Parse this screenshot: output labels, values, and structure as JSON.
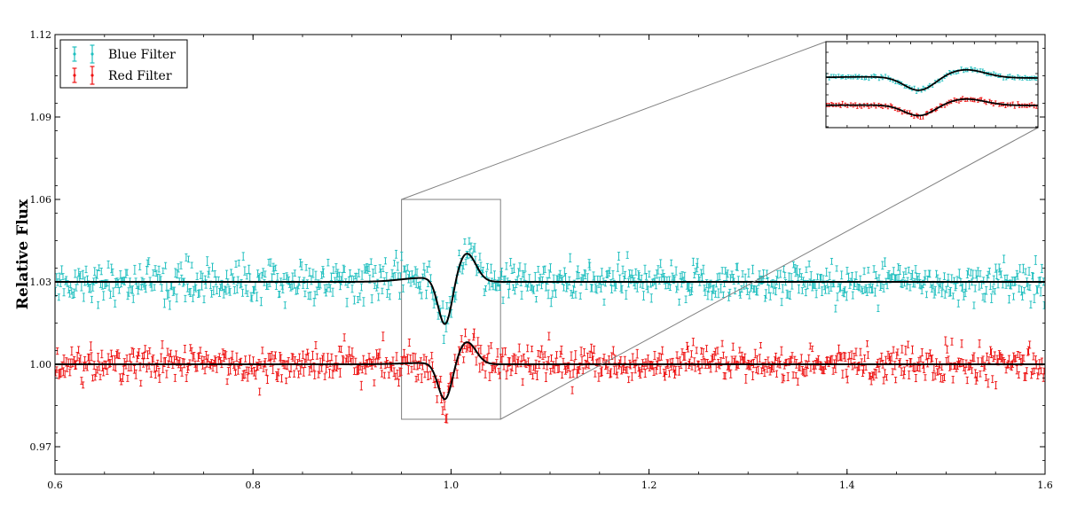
{
  "chart_data": {
    "type": "scatter",
    "title": "",
    "xlabel": "",
    "ylabel": "Relative Flux",
    "xlim": [
      0.6,
      1.6
    ],
    "ylim": [
      0.96,
      1.12
    ],
    "x_ticks": [
      0.6,
      0.8,
      1.0,
      1.2,
      1.4,
      1.6
    ],
    "x_tick_labels": [
      "0.6",
      "0.8",
      "1.0",
      "1.2",
      "1.4",
      "1.6"
    ],
    "y_ticks": [
      0.97,
      1.0,
      1.03,
      1.06,
      1.09,
      1.12
    ],
    "y_tick_labels": [
      "0.97",
      "1.00",
      "1.03",
      "1.06",
      "1.09",
      "1.12"
    ],
    "grid": false,
    "legend_position": "top-left",
    "series": [
      {
        "name": "Blue Filter",
        "color": "#1fbfbf",
        "baseline": 1.03,
        "noise_sd": 0.0035,
        "event": {
          "center": 0.995,
          "dip_x": 0.994,
          "dip_y": 1.013,
          "peak_x": 1.014,
          "peak_y": 1.04,
          "pre_bump_x": 0.955,
          "pre_bump_y": 1.0315
        },
        "x_range": [
          0.6,
          1.6
        ],
        "points_per_unit": 900
      },
      {
        "name": "Red Filter",
        "color": "#ee1111",
        "baseline": 1.0,
        "noise_sd": 0.003,
        "event": {
          "center": 0.996,
          "dip_x": 0.994,
          "dip_y": 0.9865,
          "peak_x": 1.014,
          "peak_y": 1.008,
          "pre_bump_x": 0.955,
          "pre_bump_y": 1.0005
        },
        "x_range": [
          0.6,
          1.6
        ],
        "points_per_unit": 900
      }
    ],
    "model_color": "#000000",
    "zoom_region": {
      "x": [
        0.95,
        1.05
      ],
      "y": [
        0.98,
        1.06
      ]
    },
    "inset_position": "top-right"
  }
}
